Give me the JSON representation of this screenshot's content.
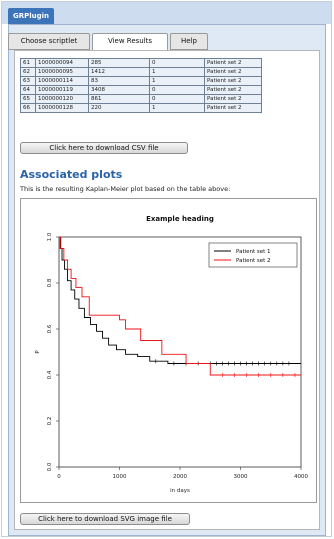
{
  "app": {
    "tab_label": "GRPlugin"
  },
  "tabs": [
    {
      "label": "Choose scriptlet"
    },
    {
      "label": "View Results"
    },
    {
      "label": "Help"
    }
  ],
  "table": {
    "rows": [
      [
        "61",
        "1000000094",
        "285",
        "0",
        "Patient set 2"
      ],
      [
        "62",
        "1000000095",
        "1412",
        "1",
        "Patient set 2"
      ],
      [
        "63",
        "1000000114",
        "83",
        "1",
        "Patient set 2"
      ],
      [
        "64",
        "1000000119",
        "3408",
        "0",
        "Patient set 2"
      ],
      [
        "65",
        "1000000120",
        "861",
        "0",
        "Patient set 2"
      ],
      [
        "66",
        "1000000128",
        "220",
        "1",
        "Patient set 2"
      ]
    ]
  },
  "buttons": {
    "download_csv": "Click here to download CSV file",
    "download_svg": "Click here to download SVG image file"
  },
  "section": {
    "title": "Associated plots",
    "description": "This is the resulting Kaplan-Meier plot based on the table above:"
  },
  "chart_data": {
    "type": "line",
    "title": "Example heading",
    "xlabel": "in days",
    "ylabel": "P",
    "xlim": [
      0,
      4000
    ],
    "ylim": [
      0,
      1.0
    ],
    "x_ticks": [
      0,
      1000,
      2000,
      3000,
      4000
    ],
    "y_ticks": [
      0,
      0.2,
      0.4,
      0.6,
      0.8,
      1.0
    ],
    "legend_position": "top-right",
    "series": [
      {
        "name": "Patient set 1",
        "color": "#000000",
        "points": [
          [
            0,
            1.0
          ],
          [
            20,
            0.95
          ],
          [
            50,
            0.9
          ],
          [
            90,
            0.86
          ],
          [
            140,
            0.81
          ],
          [
            200,
            0.77
          ],
          [
            260,
            0.73
          ],
          [
            330,
            0.69
          ],
          [
            420,
            0.65
          ],
          [
            520,
            0.62
          ],
          [
            620,
            0.59
          ],
          [
            720,
            0.56
          ],
          [
            820,
            0.53
          ],
          [
            950,
            0.51
          ],
          [
            1100,
            0.49
          ],
          [
            1300,
            0.48
          ],
          [
            1500,
            0.46
          ],
          [
            1800,
            0.45
          ],
          [
            4000,
            0.45
          ]
        ],
        "censored": [
          1600,
          1900,
          2100,
          2300,
          2500,
          2600,
          2700,
          2800,
          2900,
          3000,
          3100,
          3200,
          3300,
          3400,
          3500,
          3600,
          3700,
          3800
        ]
      },
      {
        "name": "Patient set 2",
        "color": "#ee1111",
        "points": [
          [
            0,
            1.0
          ],
          [
            30,
            0.95
          ],
          [
            80,
            0.9
          ],
          [
            140,
            0.86
          ],
          [
            200,
            0.82
          ],
          [
            280,
            0.78
          ],
          [
            380,
            0.74
          ],
          [
            500,
            0.66
          ],
          [
            1000,
            0.64
          ],
          [
            1100,
            0.6
          ],
          [
            1350,
            0.55
          ],
          [
            1700,
            0.49
          ],
          [
            2100,
            0.45
          ],
          [
            2500,
            0.4
          ],
          [
            4000,
            0.4
          ]
        ],
        "censored": [
          2700,
          2900,
          3100,
          3300,
          3500,
          3700,
          3900
        ]
      }
    ]
  }
}
